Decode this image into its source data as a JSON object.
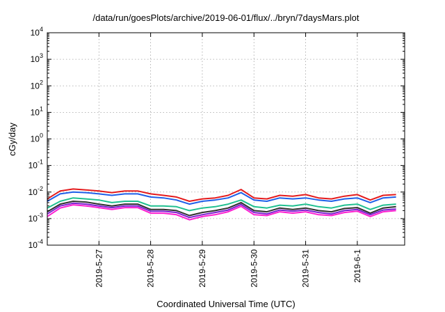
{
  "chart_data": {
    "type": "line",
    "title": "/data/run/goesPlots/archive/2019-06-01/flux/../bryn/7daysMars.plot",
    "xlabel": "Coordinated Universal Time (UTC)",
    "ylabel": "cGy/day",
    "yscale": "log",
    "ylim": [
      0.0001,
      10000
    ],
    "xlim": [
      "2019-05-26 00:00",
      "2019-06-01 22:00"
    ],
    "x_ticks": [
      "2019-5-27",
      "2019-5-28",
      "2019-5-29",
      "2019-5-30",
      "2019-5-31",
      "2019-6-1"
    ],
    "y_ticks": [
      {
        "base": "10",
        "exp": "-4"
      },
      {
        "base": "10",
        "exp": "-3"
      },
      {
        "base": "10",
        "exp": "-2"
      },
      {
        "base": "10",
        "exp": "-1"
      },
      {
        "base": "10",
        "exp": "0"
      },
      {
        "base": "10",
        "exp": "1"
      },
      {
        "base": "10",
        "exp": "2"
      },
      {
        "base": "10",
        "exp": "3"
      },
      {
        "base": "10",
        "exp": "4"
      }
    ],
    "grid": true,
    "x": [
      "2019-05-26 00:00",
      "2019-05-26 06:00",
      "2019-05-26 12:00",
      "2019-05-26 18:00",
      "2019-05-27 00:00",
      "2019-05-27 06:00",
      "2019-05-27 12:00",
      "2019-05-27 18:00",
      "2019-05-28 00:00",
      "2019-05-28 06:00",
      "2019-05-28 12:00",
      "2019-05-28 18:00",
      "2019-05-29 00:00",
      "2019-05-29 06:00",
      "2019-05-29 12:00",
      "2019-05-29 18:00",
      "2019-05-30 00:00",
      "2019-05-30 06:00",
      "2019-05-30 12:00",
      "2019-05-30 18:00",
      "2019-05-31 00:00",
      "2019-05-31 06:00",
      "2019-05-31 12:00",
      "2019-05-31 18:00",
      "2019-06-01 00:00",
      "2019-06-01 06:00",
      "2019-06-01 12:00",
      "2019-06-01 18:00"
    ],
    "series": [
      {
        "color": "#e41a1c",
        "values": [
          0.0055,
          0.011,
          0.013,
          0.012,
          0.011,
          0.0095,
          0.011,
          0.011,
          0.0085,
          0.0075,
          0.0065,
          0.0045,
          0.0055,
          0.006,
          0.0075,
          0.0125,
          0.006,
          0.0055,
          0.0075,
          0.007,
          0.008,
          0.006,
          0.0055,
          0.007,
          0.008,
          0.005,
          0.0075,
          0.008
        ]
      },
      {
        "color": "#1f5fe8",
        "values": [
          0.0045,
          0.0085,
          0.01,
          0.0095,
          0.0085,
          0.0075,
          0.0085,
          0.0085,
          0.0065,
          0.006,
          0.005,
          0.0035,
          0.0045,
          0.005,
          0.006,
          0.0095,
          0.005,
          0.0045,
          0.006,
          0.0055,
          0.006,
          0.005,
          0.0045,
          0.0055,
          0.006,
          0.004,
          0.006,
          0.0065
        ]
      },
      {
        "color": "#20c090",
        "values": [
          0.0025,
          0.0045,
          0.006,
          0.0055,
          0.005,
          0.004,
          0.0045,
          0.0045,
          0.003,
          0.003,
          0.0028,
          0.002,
          0.0025,
          0.0028,
          0.0035,
          0.005,
          0.0028,
          0.0025,
          0.0032,
          0.003,
          0.0035,
          0.0028,
          0.0025,
          0.0032,
          0.0035,
          0.0022,
          0.0032,
          0.0035
        ]
      },
      {
        "color": "#303030",
        "values": [
          0.0018,
          0.0035,
          0.0045,
          0.0042,
          0.0035,
          0.003,
          0.0035,
          0.0035,
          0.0022,
          0.0022,
          0.002,
          0.0013,
          0.0017,
          0.002,
          0.0025,
          0.004,
          0.002,
          0.0018,
          0.0025,
          0.0022,
          0.0025,
          0.002,
          0.0018,
          0.0024,
          0.0026,
          0.0016,
          0.0025,
          0.0028
        ]
      },
      {
        "color": "#7b1fd0",
        "values": [
          0.0015,
          0.003,
          0.0038,
          0.0035,
          0.003,
          0.0026,
          0.003,
          0.003,
          0.0019,
          0.0019,
          0.0017,
          0.0011,
          0.0014,
          0.0017,
          0.0021,
          0.0034,
          0.0017,
          0.0015,
          0.0021,
          0.0019,
          0.0021,
          0.0017,
          0.0015,
          0.002,
          0.0022,
          0.0014,
          0.0021,
          0.0023
        ]
      },
      {
        "color": "#ff1fd0",
        "values": [
          0.0012,
          0.0025,
          0.0033,
          0.003,
          0.0026,
          0.0022,
          0.0026,
          0.0026,
          0.0016,
          0.0016,
          0.0014,
          0.0009,
          0.0012,
          0.0014,
          0.0018,
          0.0029,
          0.0014,
          0.0013,
          0.0018,
          0.0016,
          0.0018,
          0.0014,
          0.0013,
          0.0017,
          0.0019,
          0.0012,
          0.0018,
          0.002
        ]
      }
    ]
  }
}
